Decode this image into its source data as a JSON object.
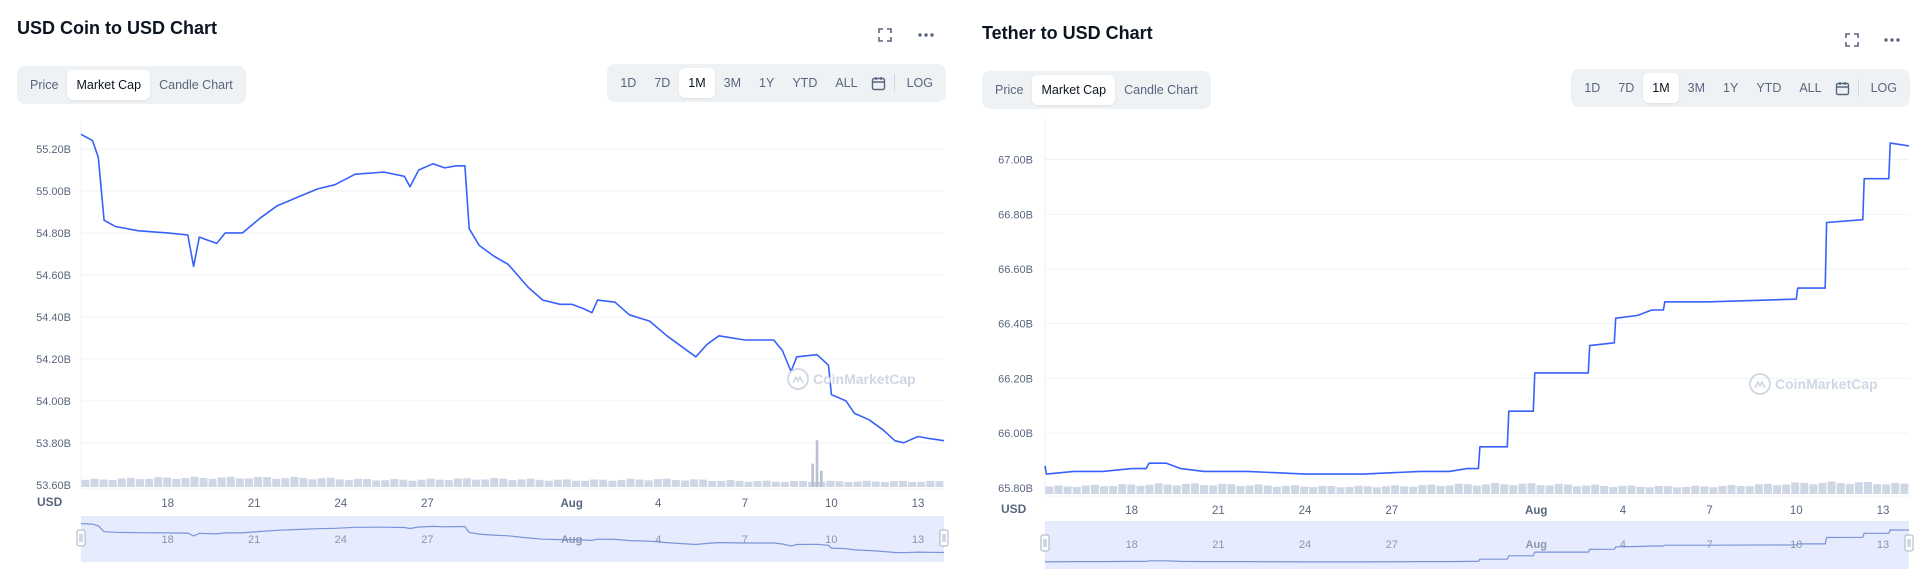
{
  "chart_data": [
    {
      "type": "line",
      "title": "USD Coin to USD Chart",
      "tabs": [
        "Price",
        "Market Cap",
        "Candle Chart"
      ],
      "active_tab": "Market Cap",
      "ranges": [
        "1D",
        "7D",
        "1M",
        "3M",
        "1Y",
        "YTD",
        "ALL"
      ],
      "active_range": "1M",
      "log_label": "LOG",
      "currency_label": "USD",
      "watermark": "CoinMarketCap",
      "y_ticks": [
        "55.20B",
        "55.00B",
        "54.80B",
        "54.60B",
        "54.40B",
        "54.20B",
        "54.00B",
        "53.80B",
        "53.60B"
      ],
      "ylim": [
        53.58,
        55.3
      ],
      "x_ticks": [
        {
          "label": "18",
          "day": 18
        },
        {
          "label": "21",
          "day": 21
        },
        {
          "label": "24",
          "day": 24
        },
        {
          "label": "27",
          "day": 27
        },
        {
          "label": "Aug",
          "day": 32
        },
        {
          "label": "4",
          "day": 35
        },
        {
          "label": "7",
          "day": 38
        },
        {
          "label": "10",
          "day": 41
        },
        {
          "label": "13",
          "day": 44
        }
      ],
      "xlim": [
        15,
        44.9
      ],
      "series": [
        {
          "name": "Market Cap",
          "points": [
            [
              15.0,
              55.27
            ],
            [
              15.4,
              55.24
            ],
            [
              15.6,
              55.16
            ],
            [
              15.8,
              54.86
            ],
            [
              16.2,
              54.83
            ],
            [
              17.0,
              54.81
            ],
            [
              18.0,
              54.8
            ],
            [
              18.7,
              54.79
            ],
            [
              18.9,
              54.64
            ],
            [
              19.1,
              54.78
            ],
            [
              19.7,
              54.75
            ],
            [
              20.0,
              54.8
            ],
            [
              20.6,
              54.8
            ],
            [
              21.2,
              54.87
            ],
            [
              21.8,
              54.93
            ],
            [
              22.5,
              54.97
            ],
            [
              23.2,
              55.01
            ],
            [
              23.8,
              55.03
            ],
            [
              24.5,
              55.08
            ],
            [
              25.5,
              55.09
            ],
            [
              26.2,
              55.07
            ],
            [
              26.4,
              55.02
            ],
            [
              26.7,
              55.1
            ],
            [
              27.2,
              55.13
            ],
            [
              27.6,
              55.11
            ],
            [
              28.0,
              55.12
            ],
            [
              28.3,
              55.12
            ],
            [
              28.45,
              54.82
            ],
            [
              28.8,
              54.74
            ],
            [
              29.3,
              54.69
            ],
            [
              29.8,
              54.65
            ],
            [
              30.5,
              54.54
            ],
            [
              31.0,
              54.48
            ],
            [
              31.6,
              54.46
            ],
            [
              32.0,
              54.46
            ],
            [
              32.4,
              54.44
            ],
            [
              32.7,
              54.42
            ],
            [
              32.9,
              54.48
            ],
            [
              33.5,
              54.47
            ],
            [
              34.0,
              54.41
            ],
            [
              34.7,
              54.38
            ],
            [
              35.3,
              54.31
            ],
            [
              35.8,
              54.26
            ],
            [
              36.3,
              54.21
            ],
            [
              36.7,
              54.27
            ],
            [
              37.1,
              54.31
            ],
            [
              38.0,
              54.29
            ],
            [
              39.0,
              54.29
            ],
            [
              39.3,
              54.24
            ],
            [
              39.6,
              54.14
            ],
            [
              39.8,
              54.21
            ],
            [
              40.5,
              54.22
            ],
            [
              40.9,
              54.17
            ],
            [
              41.0,
              54.03
            ],
            [
              41.5,
              54.0
            ],
            [
              41.8,
              53.94
            ],
            [
              42.3,
              53.91
            ],
            [
              42.8,
              53.86
            ],
            [
              43.2,
              53.81
            ],
            [
              43.5,
              53.8
            ],
            [
              44.0,
              53.83
            ],
            [
              44.4,
              53.82
            ],
            [
              44.9,
              53.81
            ]
          ]
        }
      ],
      "volume": {
        "base": 0.62,
        "bumps": [
          [
            18.0,
            1.2,
            0.35
          ],
          [
            22.5,
            1.05,
            0.32
          ],
          [
            29.0,
            1.0,
            0.28
          ],
          [
            35.0,
            0.85,
            0.22
          ]
        ],
        "spikes": [
          [
            40.5,
            5.2
          ],
          [
            40.35,
            2.6
          ],
          [
            40.65,
            1.8
          ]
        ]
      }
    },
    {
      "type": "line",
      "title": "Tether to USD Chart",
      "tabs": [
        "Price",
        "Market Cap",
        "Candle Chart"
      ],
      "active_tab": "Market Cap",
      "ranges": [
        "1D",
        "7D",
        "1M",
        "3M",
        "1Y",
        "YTD",
        "ALL"
      ],
      "active_range": "1M",
      "log_label": "LOG",
      "currency_label": "USD",
      "watermark": "CoinMarketCap",
      "y_ticks": [
        "67.00B",
        "66.80B",
        "66.60B",
        "66.40B",
        "66.20B",
        "66.00B",
        "65.80B"
      ],
      "ylim": [
        65.77,
        67.13
      ],
      "x_ticks": [
        {
          "label": "18",
          "day": 18
        },
        {
          "label": "21",
          "day": 21
        },
        {
          "label": "24",
          "day": 24
        },
        {
          "label": "27",
          "day": 27
        },
        {
          "label": "Aug",
          "day": 32
        },
        {
          "label": "4",
          "day": 35
        },
        {
          "label": "7",
          "day": 38
        },
        {
          "label": "10",
          "day": 41
        },
        {
          "label": "13",
          "day": 44
        }
      ],
      "xlim": [
        15,
        44.9
      ],
      "series": [
        {
          "name": "Market Cap",
          "points": [
            [
              15.0,
              65.88
            ],
            [
              15.05,
              65.85
            ],
            [
              16.0,
              65.86
            ],
            [
              17.0,
              65.86
            ],
            [
              18.0,
              65.87
            ],
            [
              18.5,
              65.87
            ],
            [
              18.6,
              65.89
            ],
            [
              19.2,
              65.89
            ],
            [
              19.7,
              65.87
            ],
            [
              20.5,
              65.86
            ],
            [
              22.0,
              65.86
            ],
            [
              24.0,
              65.85
            ],
            [
              26.0,
              65.85
            ],
            [
              28.0,
              65.86
            ],
            [
              29.0,
              65.86
            ],
            [
              29.6,
              65.87
            ],
            [
              30.0,
              65.87
            ],
            [
              30.05,
              65.95
            ],
            [
              31.0,
              65.95
            ],
            [
              31.05,
              66.08
            ],
            [
              31.9,
              66.08
            ],
            [
              31.95,
              66.22
            ],
            [
              33.8,
              66.22
            ],
            [
              33.85,
              66.32
            ],
            [
              34.7,
              66.33
            ],
            [
              34.75,
              66.42
            ],
            [
              35.5,
              66.43
            ],
            [
              36.0,
              66.45
            ],
            [
              36.4,
              66.45
            ],
            [
              36.45,
              66.48
            ],
            [
              38.0,
              66.48
            ],
            [
              41.0,
              66.49
            ],
            [
              41.05,
              66.53
            ],
            [
              42.0,
              66.53
            ],
            [
              42.05,
              66.77
            ],
            [
              43.3,
              66.78
            ],
            [
              43.35,
              66.93
            ],
            [
              44.2,
              66.93
            ],
            [
              44.25,
              67.06
            ],
            [
              44.9,
              67.05
            ]
          ]
        }
      ],
      "volume": {
        "base": 0.78,
        "bumps": [
          [
            19.8,
            1.25,
            0.3
          ],
          [
            31.0,
            1.2,
            0.32
          ],
          [
            41.4,
            0.95,
            0.25
          ],
          [
            43.6,
            1.05,
            0.3
          ]
        ],
        "spikes": []
      }
    }
  ]
}
